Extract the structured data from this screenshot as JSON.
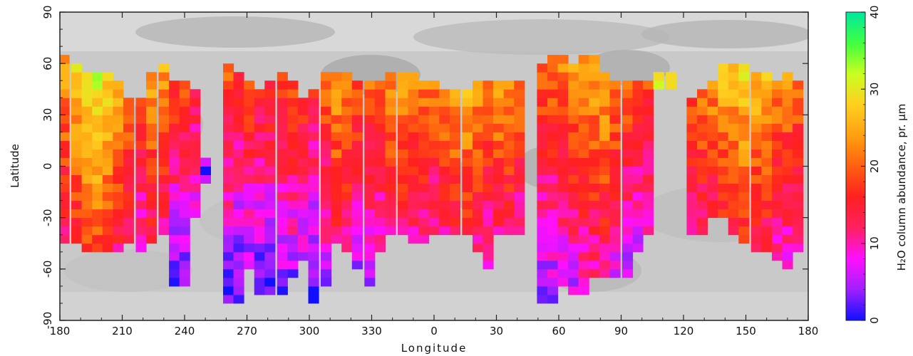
{
  "chart_data": {
    "type": "heatmap",
    "title": "",
    "xlabel": "Longitude",
    "ylabel": "Latitude",
    "x_ticks": [
      "180",
      "210",
      "240",
      "270",
      "300",
      "330",
      "0",
      "30",
      "60",
      "90",
      "120",
      "150",
      "180"
    ],
    "y_ticks": [
      "-90",
      "-60",
      "-30",
      "0",
      "30",
      "60",
      "90"
    ],
    "x_tick_values": [
      -180,
      -150,
      -120,
      -90,
      -60,
      -30,
      0,
      30,
      60,
      90,
      120,
      150,
      180
    ],
    "y_tick_values": [
      -90,
      -60,
      -30,
      0,
      30,
      60,
      90
    ],
    "xlim": [
      -180,
      180
    ],
    "ylim": [
      -90,
      90
    ],
    "cell_size_deg": 5,
    "background": "grayscale planetary albedo map",
    "colorbar": {
      "label": "H₂O column abundance, pr. µm",
      "range": [
        0,
        40
      ],
      "ticks": [
        "0",
        "10",
        "20",
        "30",
        "40"
      ],
      "tick_values": [
        0,
        10,
        20,
        30,
        40
      ],
      "colors": [
        "#1010ff",
        "#a020ff",
        "#ff10ff",
        "#ff2060",
        "#ff2020",
        "#ff6010",
        "#ffa010",
        "#ffd020",
        "#c8ff20",
        "#40ff40",
        "#00e8a0"
      ]
    },
    "columns": [
      {
        "lon": -178,
        "lat_range": [
          -45,
          65
        ],
        "level": 18
      },
      {
        "lon": -172,
        "lat_range": [
          -45,
          60
        ],
        "level": 22
      },
      {
        "lon": -167,
        "lat_range": [
          -50,
          55
        ],
        "level": 25
      },
      {
        "lon": -162,
        "lat_range": [
          -50,
          55
        ],
        "level": 26
      },
      {
        "lon": -157,
        "lat_range": [
          -50,
          55
        ],
        "level": 24
      },
      {
        "lon": -152,
        "lat_range": [
          -50,
          50
        ],
        "level": 20
      },
      {
        "lon": -147,
        "lat_range": [
          -45,
          40
        ],
        "level": 18
      },
      {
        "lon": -141,
        "lat_range": [
          -50,
          40
        ],
        "level": 15
      },
      {
        "lon": -136,
        "lat_range": [
          -45,
          55
        ],
        "level": 19
      },
      {
        "lon": -130,
        "lat_range": [
          -40,
          60
        ],
        "level": 18
      },
      {
        "lon": -125,
        "lat_range": [
          -70,
          50
        ],
        "level": 13
      },
      {
        "lon": -120,
        "lat_range": [
          -70,
          50
        ],
        "level": 13
      },
      {
        "lon": -115,
        "lat_range": [
          -30,
          45
        ],
        "level": 11
      },
      {
        "lon": -110,
        "lat_range": [
          -10,
          5
        ],
        "level": 5
      },
      {
        "lon": -99,
        "lat_range": [
          -80,
          60
        ],
        "level": 13
      },
      {
        "lon": -94,
        "lat_range": [
          -80,
          55
        ],
        "level": 12
      },
      {
        "lon": -89,
        "lat_range": [
          -60,
          50
        ],
        "level": 13
      },
      {
        "lon": -84,
        "lat_range": [
          -75,
          45
        ],
        "level": 12
      },
      {
        "lon": -79,
        "lat_range": [
          -75,
          50
        ],
        "level": 12
      },
      {
        "lon": -73,
        "lat_range": [
          -75,
          55
        ],
        "level": 14
      },
      {
        "lon": -68,
        "lat_range": [
          -65,
          50
        ],
        "level": 14
      },
      {
        "lon": -63,
        "lat_range": [
          -55,
          40
        ],
        "level": 13
      },
      {
        "lon": -58,
        "lat_range": [
          -80,
          45
        ],
        "level": 12
      },
      {
        "lon": -52,
        "lat_range": [
          -70,
          55
        ],
        "level": 15
      },
      {
        "lon": -47,
        "lat_range": [
          -45,
          55
        ],
        "level": 19
      },
      {
        "lon": -42,
        "lat_range": [
          -50,
          55
        ],
        "level": 18
      },
      {
        "lon": -37,
        "lat_range": [
          -60,
          50
        ],
        "level": 15
      },
      {
        "lon": -31,
        "lat_range": [
          -70,
          50
        ],
        "level": 15
      },
      {
        "lon": -26,
        "lat_range": [
          -50,
          50
        ],
        "level": 16
      },
      {
        "lon": -21,
        "lat_range": [
          -40,
          55
        ],
        "level": 18
      },
      {
        "lon": -15,
        "lat_range": [
          -40,
          55
        ],
        "level": 19
      },
      {
        "lon": -10,
        "lat_range": [
          -45,
          55
        ],
        "level": 18
      },
      {
        "lon": -5,
        "lat_range": [
          -45,
          50
        ],
        "level": 17
      },
      {
        "lon": 0,
        "lat_range": [
          -40,
          50
        ],
        "level": 16
      },
      {
        "lon": 5,
        "lat_range": [
          -40,
          45
        ],
        "level": 18
      },
      {
        "lon": 10,
        "lat_range": [
          -40,
          45
        ],
        "level": 20
      },
      {
        "lon": 16,
        "lat_range": [
          -40,
          45
        ],
        "level": 21
      },
      {
        "lon": 21,
        "lat_range": [
          -50,
          50
        ],
        "level": 19
      },
      {
        "lon": 26,
        "lat_range": [
          -60,
          50
        ],
        "level": 17
      },
      {
        "lon": 31,
        "lat_range": [
          -40,
          50
        ],
        "level": 19
      },
      {
        "lon": 36,
        "lat_range": [
          -40,
          50
        ],
        "level": 18
      },
      {
        "lon": 41,
        "lat_range": [
          -40,
          50
        ],
        "level": 16
      },
      {
        "lon": 52,
        "lat_range": [
          -80,
          60
        ],
        "level": 14
      },
      {
        "lon": 57,
        "lat_range": [
          -80,
          65
        ],
        "level": 15
      },
      {
        "lon": 62,
        "lat_range": [
          -70,
          65
        ],
        "level": 16
      },
      {
        "lon": 67,
        "lat_range": [
          -75,
          60
        ],
        "level": 17
      },
      {
        "lon": 72,
        "lat_range": [
          -75,
          65
        ],
        "level": 18
      },
      {
        "lon": 77,
        "lat_range": [
          -65,
          65
        ],
        "level": 19
      },
      {
        "lon": 82,
        "lat_range": [
          -65,
          55
        ],
        "level": 20
      },
      {
        "lon": 87,
        "lat_range": [
          -65,
          50
        ],
        "level": 17
      },
      {
        "lon": 93,
        "lat_range": [
          -65,
          50
        ],
        "level": 15
      },
      {
        "lon": 98,
        "lat_range": [
          -50,
          50
        ],
        "level": 14
      },
      {
        "lon": 103,
        "lat_range": [
          -40,
          50
        ],
        "level": 14
      },
      {
        "lon": 108,
        "lat_range": [
          45,
          55
        ],
        "level": 25
      },
      {
        "lon": 114,
        "lat_range": [
          45,
          55
        ],
        "level": 26
      },
      {
        "lon": 124,
        "lat_range": [
          -40,
          40
        ],
        "level": 16
      },
      {
        "lon": 129,
        "lat_range": [
          -40,
          45
        ],
        "level": 17
      },
      {
        "lon": 134,
        "lat_range": [
          -30,
          50
        ],
        "level": 18
      },
      {
        "lon": 139,
        "lat_range": [
          -30,
          60
        ],
        "level": 20
      },
      {
        "lon": 144,
        "lat_range": [
          -40,
          60
        ],
        "level": 21
      },
      {
        "lon": 149,
        "lat_range": [
          -45,
          60
        ],
        "level": 22
      },
      {
        "lon": 155,
        "lat_range": [
          -50,
          55
        ],
        "level": 21
      },
      {
        "lon": 160,
        "lat_range": [
          -50,
          55
        ],
        "level": 20
      },
      {
        "lon": 165,
        "lat_range": [
          -55,
          50
        ],
        "level": 18
      },
      {
        "lon": 170,
        "lat_range": [
          -60,
          55
        ],
        "level": 17
      },
      {
        "lon": 175,
        "lat_range": [
          -50,
          50
        ],
        "level": 16
      }
    ]
  }
}
